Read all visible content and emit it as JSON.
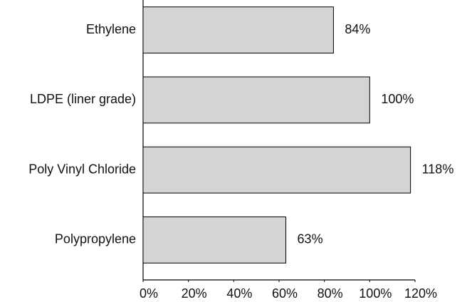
{
  "chart_data": {
    "type": "barh",
    "categories": [
      "Ethylene",
      "LDPE (liner grade)",
      "Poly Vinyl Chloride",
      "Polypropylene"
    ],
    "values": [
      84,
      100,
      118,
      63
    ],
    "value_labels": [
      "84%",
      "100%",
      "118%",
      "63%"
    ],
    "color": "#d4d4d4",
    "xlim": [
      0,
      120
    ],
    "xticks": [
      {
        "value": 0,
        "label": "0%"
      },
      {
        "value": 20,
        "label": "20%"
      },
      {
        "value": 40,
        "label": "40%"
      },
      {
        "value": 60,
        "label": "60%"
      },
      {
        "value": 80,
        "label": "80%"
      },
      {
        "value": 100,
        "label": "100%"
      },
      {
        "value": 120,
        "label": "120%"
      }
    ],
    "grid": false
  }
}
